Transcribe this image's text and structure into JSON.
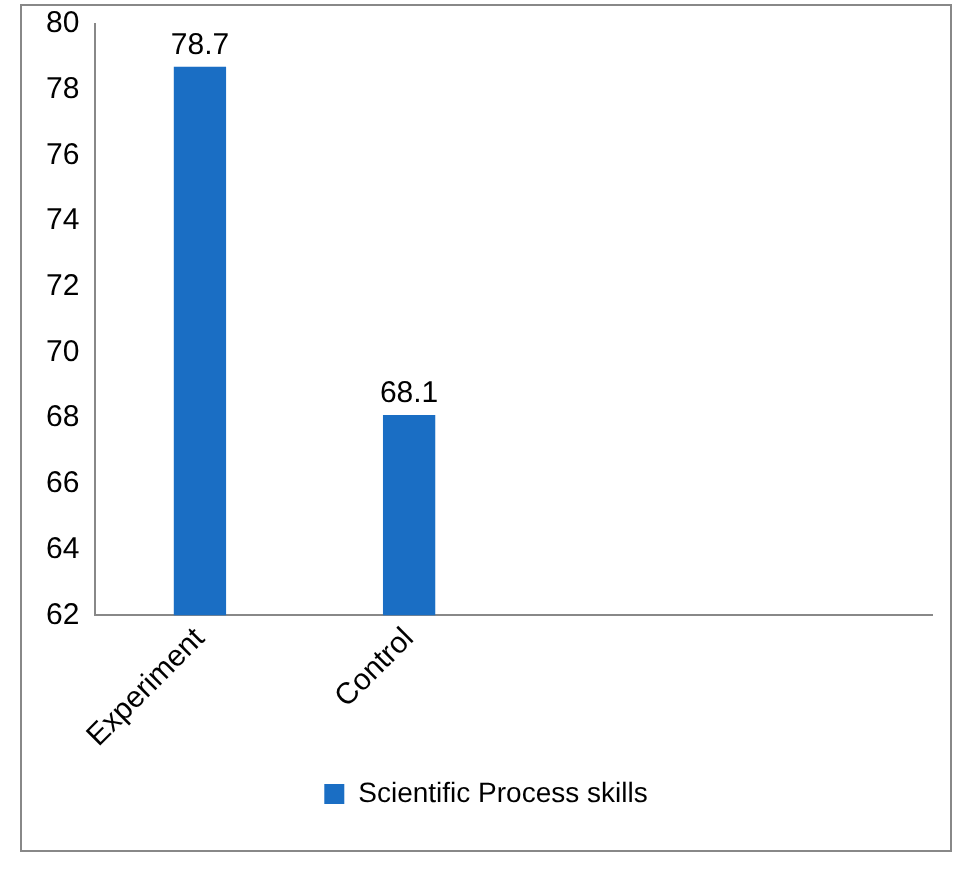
{
  "chart_data": {
    "type": "bar",
    "categories": [
      "Experiment",
      "Control",
      null,
      null
    ],
    "series": [
      {
        "name": "Scientific Process skills",
        "color": "#1a6ec4",
        "values": [
          78.7,
          68.1,
          null,
          null
        ]
      }
    ],
    "ylim": [
      62,
      80
    ],
    "yticks": [
      62,
      64,
      66,
      68,
      70,
      72,
      74,
      76,
      78,
      80
    ],
    "grid": false,
    "legend": "bottom",
    "data_labels": true
  }
}
